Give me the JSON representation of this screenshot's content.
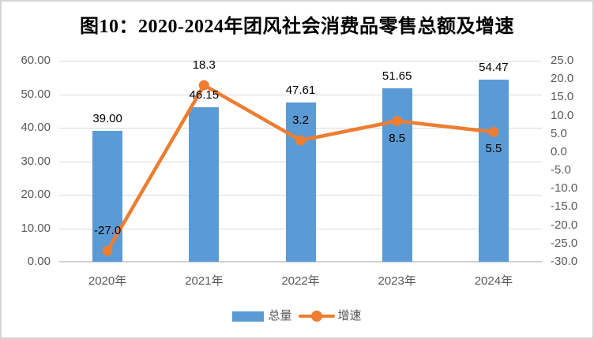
{
  "title": "图10：2020-2024年团风社会消费品零售总额及增速",
  "colors": {
    "bar": "#5B9BD5",
    "line": "#ED7D31",
    "gridline": "#D9D9D9",
    "axis_line": "#D2D2D2",
    "tick_text": "#595959",
    "data_label_text": "#000000",
    "title_text": "#000000",
    "border": "#D4D4D4",
    "background": "#FFFFFF"
  },
  "chart_data": {
    "type": "combo bar+line",
    "title": "图10：2020-2024年团风社会消费品零售总额及增速",
    "categories": [
      "2020年",
      "2021年",
      "2022年",
      "2023年",
      "2024年"
    ],
    "series": [
      {
        "name": "总量",
        "type": "bar",
        "axis": "left",
        "values": [
          39.0,
          46.15,
          47.61,
          51.65,
          54.47
        ],
        "data_labels": [
          "39.00",
          "46.15",
          "47.61",
          "51.65",
          "54.47"
        ]
      },
      {
        "name": "增速",
        "type": "line",
        "axis": "right",
        "values": [
          -27.0,
          18.3,
          3.2,
          8.5,
          5.5
        ],
        "data_labels": [
          "-27.0",
          "18.3",
          "3.2",
          "8.5",
          "5.5"
        ],
        "label_side": [
          "above",
          "above",
          "above",
          "below",
          "below"
        ]
      }
    ],
    "left_axis": {
      "min": 0,
      "max": 60,
      "step": 10,
      "tick_labels": [
        "0.00",
        "10.00",
        "20.00",
        "30.00",
        "40.00",
        "50.00",
        "60.00"
      ]
    },
    "right_axis": {
      "min": -30,
      "max": 25,
      "step": 5,
      "tick_labels": [
        "-30.0",
        "-25.0",
        "-20.0",
        "-15.0",
        "-10.0",
        "-5.0",
        "0.0",
        "5.0",
        "10.0",
        "15.0",
        "20.0",
        "25.0"
      ]
    },
    "grid": "horizontal gridlines at left-axis steps",
    "legend": {
      "position": "bottom",
      "items": [
        "总量",
        "增速"
      ]
    }
  }
}
